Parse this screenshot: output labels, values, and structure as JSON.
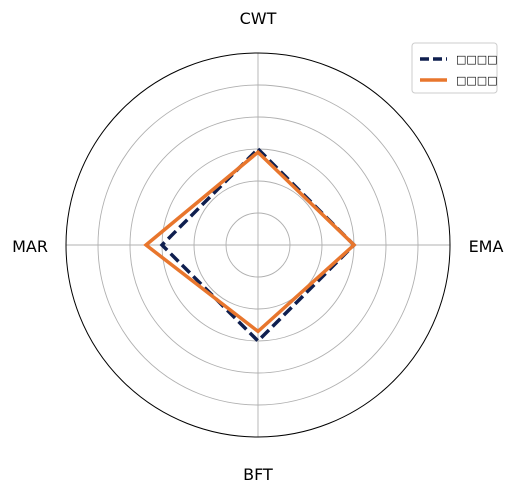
{
  "chart_data": {
    "type": "radar",
    "axes": [
      "CWT",
      "EMA",
      "BFT",
      "MAR"
    ],
    "rmax": 6,
    "rings": [
      1,
      2,
      3,
      4,
      5
    ],
    "grid": true,
    "legend_position": "top-right",
    "series": [
      {
        "name": "□□□□",
        "values": [
          3.0,
          3.0,
          3.0,
          3.0
        ],
        "color": "#0f1f4f",
        "style": "dashed"
      },
      {
        "name": "□□□□",
        "values": [
          2.9,
          3.0,
          2.7,
          3.5
        ],
        "color": "#e8762d",
        "style": "solid"
      }
    ]
  }
}
